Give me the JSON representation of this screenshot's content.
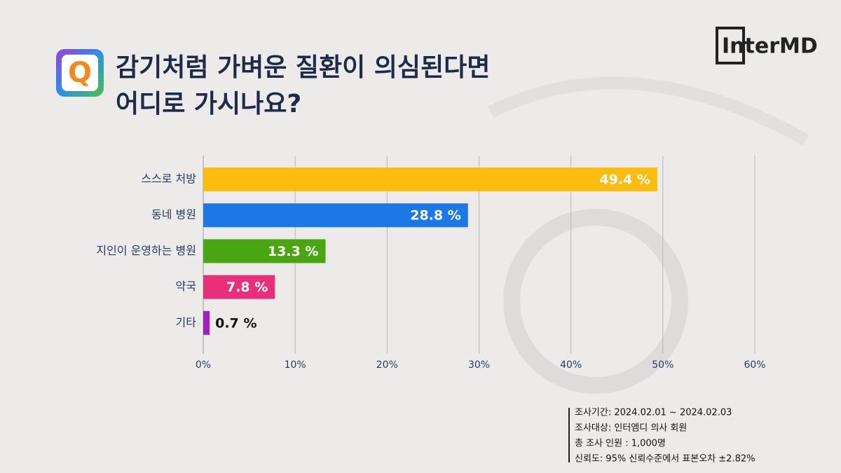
{
  "brand": "InterMD",
  "chart_data": {
    "type": "hbar",
    "title_lines": [
      "감기처럼 가벼운 질환이 의심된다면",
      "어디로 가시나요?"
    ],
    "icon_label": "Q",
    "categories": [
      "스스로 처방",
      "동네 병원",
      "지인이 운영하는 병원",
      "약국",
      "기타"
    ],
    "values": [
      49.4,
      28.8,
      13.3,
      7.8,
      0.7
    ],
    "value_labels": [
      "49.4 %",
      "28.8 %",
      "13.3 %",
      "7.8 %",
      "0.7 %"
    ],
    "colors": [
      "#fbbb0f",
      "#1d78e6",
      "#4aa513",
      "#e8307a",
      "#a020c8"
    ],
    "xlim": [
      0,
      60
    ],
    "xticks": [
      {
        "value": 0,
        "label": "0%"
      },
      {
        "value": 10,
        "label": "10%"
      },
      {
        "value": 20,
        "label": "20%"
      },
      {
        "value": 30,
        "label": "30%"
      },
      {
        "value": 40,
        "label": "40%"
      },
      {
        "value": 50,
        "label": "50%"
      },
      {
        "value": 60,
        "label": "60%"
      }
    ],
    "grid": true,
    "notes": [
      "조사기간: 2024.02.01 ~ 2024.02.03",
      "조사대상: 인터엠디 의사 회원",
      "총 조사 인원 : 1,000명",
      "신뢰도: 95% 신뢰수준에서 표본오차 ±2.82%"
    ]
  }
}
